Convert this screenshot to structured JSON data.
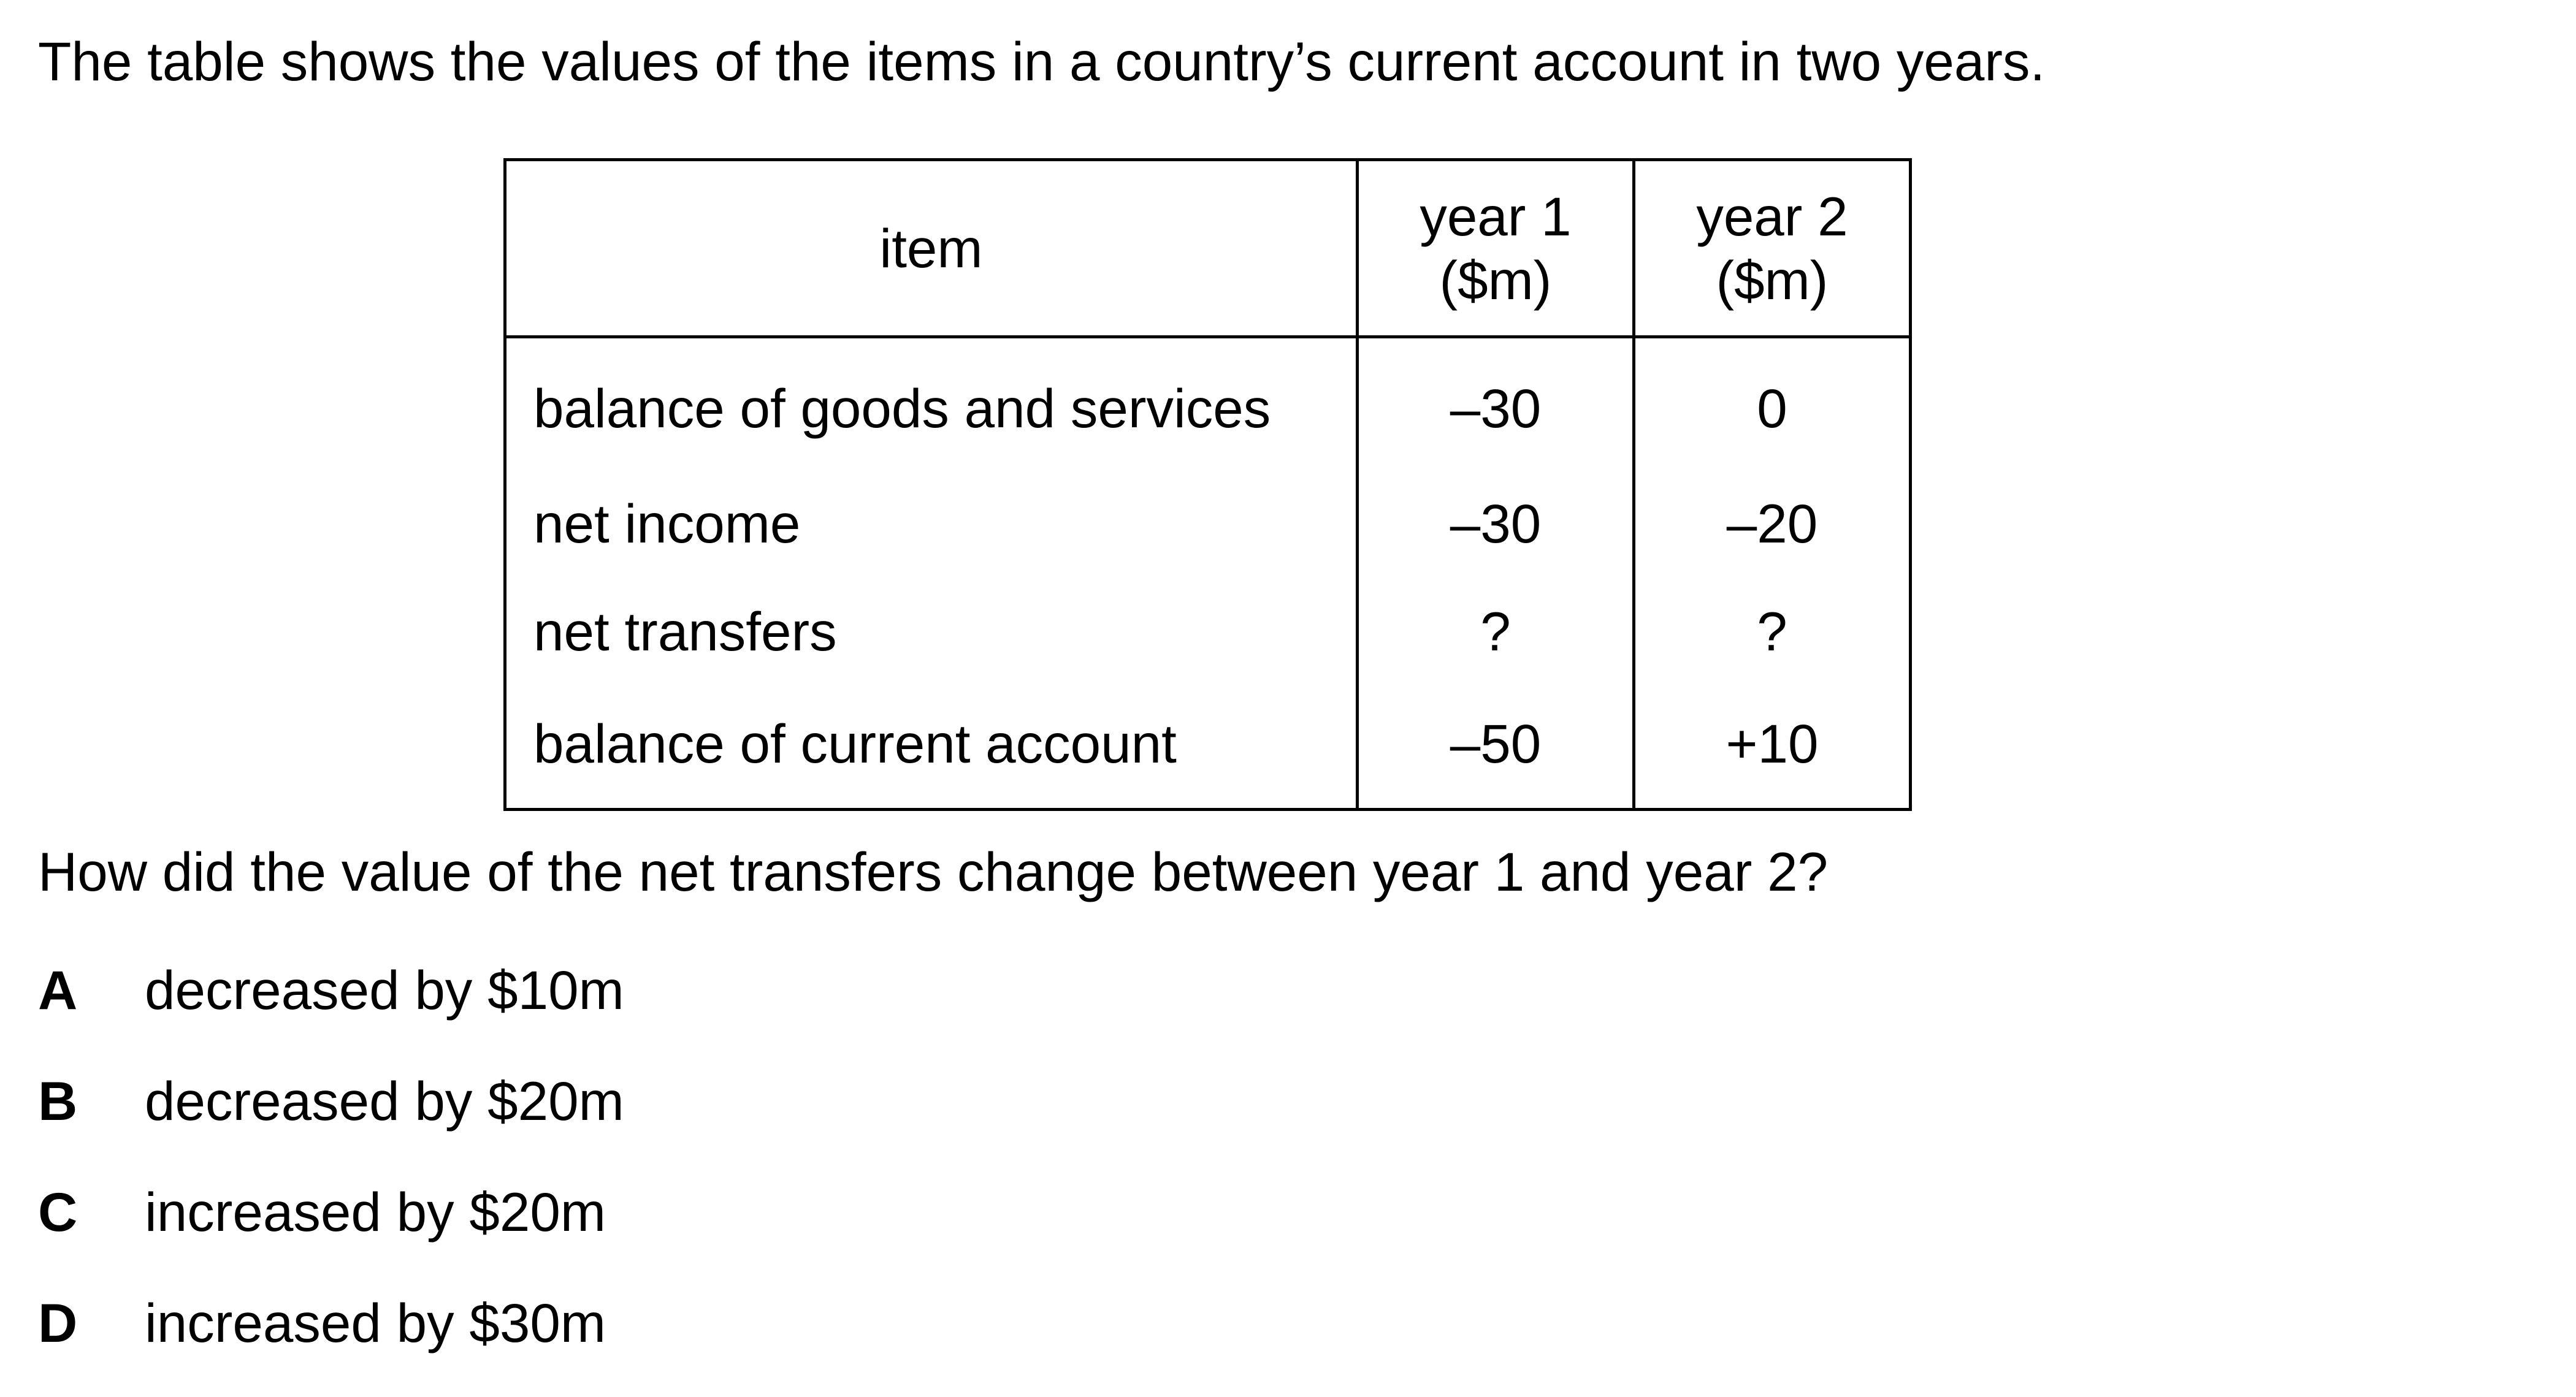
{
  "intro_text": "The table shows the values of the items in a country’s current account in two years.",
  "table": {
    "headers": {
      "item": "item",
      "year1_line1": "year 1",
      "year1_line2": "($m)",
      "year2_line1": "year 2",
      "year2_line2": "($m)"
    },
    "rows": [
      {
        "item": "balance of goods and services",
        "year1": "–30",
        "year2": "0"
      },
      {
        "item": "net income",
        "year1": "–30",
        "year2": "–20"
      },
      {
        "item": "net transfers",
        "year1": "?",
        "year2": "?"
      },
      {
        "item": "balance of current account",
        "year1": "–50",
        "year2": "+10"
      }
    ]
  },
  "question": "How did the value of the net transfers change between year 1 and year 2?",
  "options": [
    {
      "letter": "A",
      "text": "decreased by $10m"
    },
    {
      "letter": "B",
      "text": "decreased by $20m"
    },
    {
      "letter": "C",
      "text": "increased by $20m"
    },
    {
      "letter": "D",
      "text": "increased by $30m"
    }
  ]
}
